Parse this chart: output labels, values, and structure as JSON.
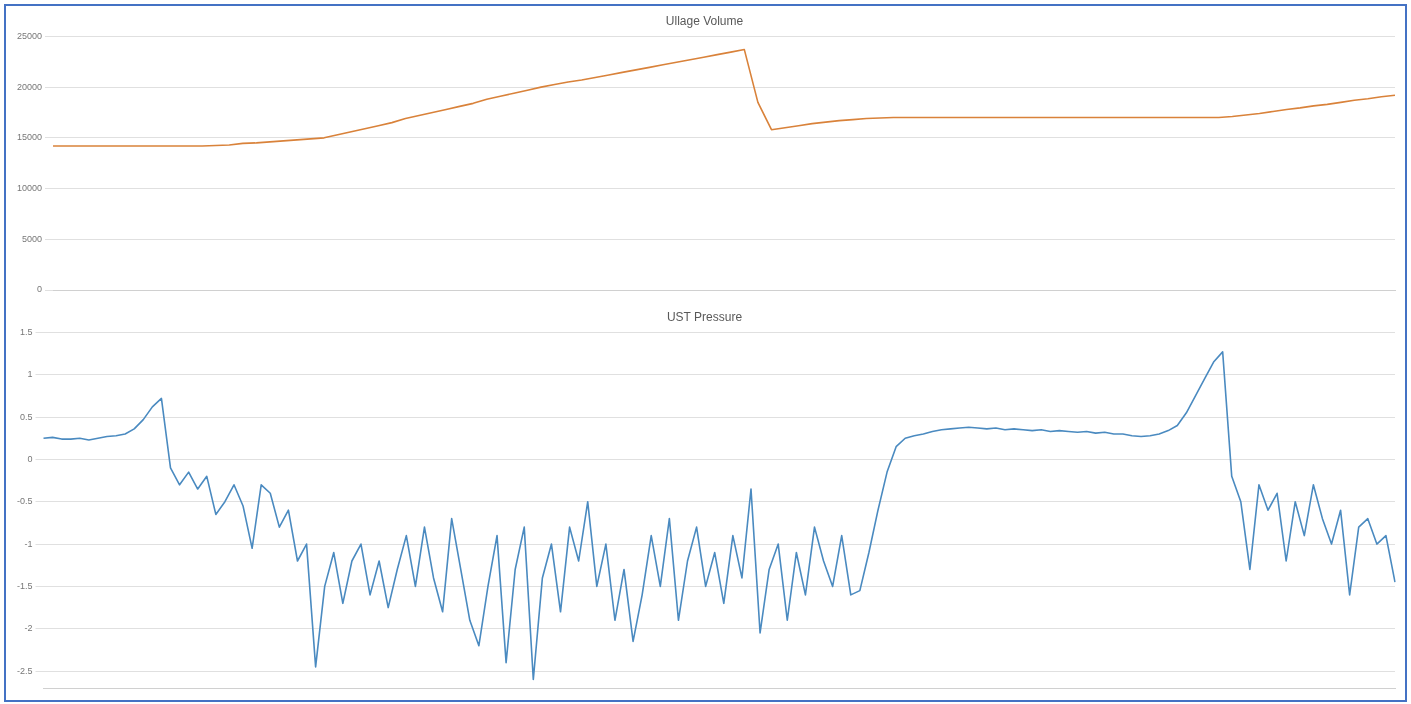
{
  "chart_data": [
    {
      "type": "line",
      "title": "Ullage Volume",
      "categories": [
        null,
        null,
        null,
        null,
        null,
        null,
        null,
        null,
        null,
        null,
        null,
        null,
        null,
        null,
        null,
        null,
        null,
        null,
        null,
        null,
        null,
        null,
        null,
        null,
        null,
        null,
        null,
        null,
        null,
        null,
        null,
        null,
        null,
        null,
        null,
        null,
        null,
        null,
        null,
        null,
        null,
        null,
        null,
        null,
        null,
        null,
        null,
        null,
        null,
        null,
        null,
        null,
        null,
        null,
        null,
        null,
        null,
        null,
        null,
        null,
        null,
        null,
        null,
        null,
        null,
        null,
        null,
        null,
        null,
        null,
        null,
        null,
        null,
        null,
        null,
        null,
        null,
        null,
        null,
        null,
        null,
        null,
        null,
        null,
        null,
        null,
        null,
        null,
        null,
        null,
        null,
        null,
        null,
        null,
        null,
        null,
        null,
        null,
        null,
        null
      ],
      "series": [
        {
          "color": "#d9823a",
          "values": [
            14200,
            14200,
            14200,
            14200,
            14200,
            14200,
            14200,
            14200,
            14200,
            14200,
            14200,
            14200,
            14250,
            14300,
            14450,
            14500,
            14600,
            14700,
            14800,
            14900,
            15000,
            15300,
            15600,
            15900,
            16200,
            16500,
            16900,
            17200,
            17500,
            17800,
            18100,
            18400,
            18800,
            19100,
            19400,
            19700,
            20000,
            20250,
            20500,
            20700,
            20950,
            21200,
            21450,
            21700,
            21950,
            22200,
            22450,
            22700,
            22950,
            23200,
            23450,
            23700,
            18500,
            15800,
            16000,
            16200,
            16400,
            16550,
            16700,
            16800,
            16900,
            16950,
            17000,
            17000,
            17000,
            17000,
            17000,
            17000,
            17000,
            17000,
            17000,
            17000,
            17000,
            17000,
            17000,
            17000,
            17000,
            17000,
            17000,
            17000,
            17000,
            17000,
            17000,
            17000,
            17000,
            17000,
            17000,
            17100,
            17250,
            17400,
            17600,
            17800,
            17950,
            18150,
            18300,
            18500,
            18700,
            18850,
            19050,
            19200
          ]
        }
      ],
      "ylim": [
        0,
        25000
      ],
      "yticks": [
        0,
        5000,
        10000,
        15000,
        20000,
        25000
      ],
      "grid": "y",
      "tick_labels": "y"
    },
    {
      "type": "line",
      "title": "UST Pressure",
      "categories": [
        null,
        null,
        null,
        null,
        null,
        null,
        null,
        null,
        null,
        null,
        null,
        null,
        null,
        null,
        null,
        null,
        null,
        null,
        null,
        null,
        null,
        null,
        null,
        null,
        null,
        null,
        null,
        null,
        null,
        null,
        null,
        null,
        null,
        null,
        null,
        null,
        null,
        null,
        null,
        null,
        null,
        null,
        null,
        null,
        null,
        null,
        null,
        null,
        null,
        null,
        null,
        null,
        null,
        null,
        null,
        null,
        null,
        null,
        null,
        null,
        null,
        null,
        null,
        null,
        null,
        null,
        null,
        null,
        null,
        null,
        null,
        null,
        null,
        null,
        null,
        null,
        null,
        null,
        null,
        null,
        null,
        null,
        null,
        null,
        null,
        null,
        null,
        null,
        null,
        null,
        null,
        null,
        null,
        null,
        null,
        null,
        null,
        null,
        null,
        null,
        null,
        null,
        null,
        null,
        null,
        null,
        null,
        null,
        null,
        null,
        null,
        null,
        null,
        null,
        null,
        null,
        null,
        null,
        null,
        null,
        null,
        null,
        null,
        null,
        null,
        null,
        null,
        null,
        null,
        null,
        null,
        null,
        null,
        null,
        null,
        null,
        null,
        null,
        null,
        null,
        null,
        null,
        null,
        null,
        null,
        null,
        null,
        null,
        null,
        null
      ],
      "series": [
        {
          "color": "#4a8ac0",
          "values": [
            0.25,
            0.26,
            0.24,
            0.24,
            0.25,
            0.23,
            0.25,
            0.27,
            0.28,
            0.3,
            0.36,
            0.47,
            0.62,
            0.72,
            -0.1,
            -0.3,
            -0.15,
            -0.35,
            -0.2,
            -0.65,
            -0.5,
            -0.3,
            -0.55,
            -1.05,
            -0.3,
            -0.4,
            -0.8,
            -0.6,
            -1.2,
            -1.0,
            -2.45,
            -1.5,
            -1.1,
            -1.7,
            -1.2,
            -1.0,
            -1.6,
            -1.2,
            -1.75,
            -1.3,
            -0.9,
            -1.5,
            -0.8,
            -1.4,
            -1.8,
            -0.7,
            -1.3,
            -1.9,
            -2.2,
            -1.5,
            -0.9,
            -2.4,
            -1.3,
            -0.8,
            -2.6,
            -1.4,
            -1.0,
            -1.8,
            -0.8,
            -1.2,
            -0.5,
            -1.5,
            -1.0,
            -1.9,
            -1.3,
            -2.15,
            -1.6,
            -0.9,
            -1.5,
            -0.7,
            -1.9,
            -1.2,
            -0.8,
            -1.5,
            -1.1,
            -1.7,
            -0.9,
            -1.4,
            -0.35,
            -2.05,
            -1.3,
            -1.0,
            -1.9,
            -1.1,
            -1.6,
            -0.8,
            -1.2,
            -1.5,
            -0.9,
            -1.6,
            -1.55,
            -1.1,
            -0.6,
            -0.15,
            0.15,
            0.25,
            0.28,
            0.3,
            0.33,
            0.35,
            0.36,
            0.37,
            0.38,
            0.37,
            0.36,
            0.37,
            0.35,
            0.36,
            0.35,
            0.34,
            0.35,
            0.33,
            0.34,
            0.33,
            0.32,
            0.33,
            0.31,
            0.32,
            0.3,
            0.3,
            0.28,
            0.27,
            0.28,
            0.3,
            0.34,
            0.4,
            0.55,
            0.75,
            0.95,
            1.15,
            1.27,
            -0.2,
            -0.5,
            -1.3,
            -0.3,
            -0.6,
            -0.4,
            -1.2,
            -0.5,
            -0.9,
            -0.3,
            -0.7,
            -1.0,
            -0.6,
            -1.6,
            -0.8,
            -0.7,
            -1.0,
            -0.9,
            -1.45
          ]
        }
      ],
      "ylim": [
        -2.7,
        1.5
      ],
      "yticks": [
        -2.5,
        -2,
        -1.5,
        -1,
        -0.5,
        0,
        0.5,
        1,
        1.5
      ],
      "grid": "y",
      "tick_labels": "y"
    }
  ]
}
